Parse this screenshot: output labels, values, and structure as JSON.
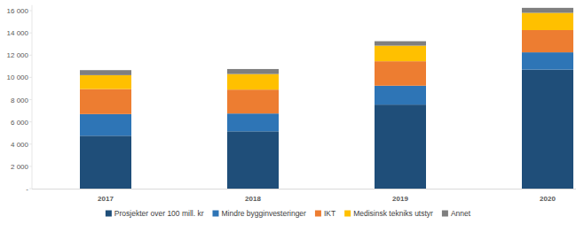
{
  "chart_data": {
    "type": "bar",
    "stacked": true,
    "legend": "bottom",
    "grid": false,
    "categories": [
      "2017",
      "2018",
      "2019",
      "2020"
    ],
    "series": [
      {
        "name": "Prosjekter over 100 mill. kr",
        "color": "#1f4e79",
        "values": [
          4750,
          5150,
          7550,
          10700
        ]
      },
      {
        "name": "Mindre bygginvesteringer",
        "color": "#2e75b6",
        "values": [
          1950,
          1600,
          1700,
          1550
        ]
      },
      {
        "name": "IKT",
        "color": "#ed7d31",
        "values": [
          2250,
          2150,
          2200,
          2000
        ]
      },
      {
        "name": "Medisinsk tekniks utstyr",
        "color": "#ffc000",
        "values": [
          1250,
          1400,
          1400,
          1550
        ]
      },
      {
        "name": "Annet",
        "color": "#7f7f7f",
        "values": [
          450,
          450,
          400,
          450
        ]
      }
    ],
    "ylim": [
      0,
      16500
    ],
    "yticks": [
      {
        "value": 0,
        "label": "-"
      },
      {
        "value": 2000,
        "label": "2 000"
      },
      {
        "value": 4000,
        "label": "4 000"
      },
      {
        "value": 6000,
        "label": "6 000"
      },
      {
        "value": 8000,
        "label": "8 000"
      },
      {
        "value": 10000,
        "label": "10 000"
      },
      {
        "value": 12000,
        "label": "12 000"
      },
      {
        "value": 14000,
        "label": "14 000"
      },
      {
        "value": 16000,
        "label": "16 000"
      }
    ]
  }
}
